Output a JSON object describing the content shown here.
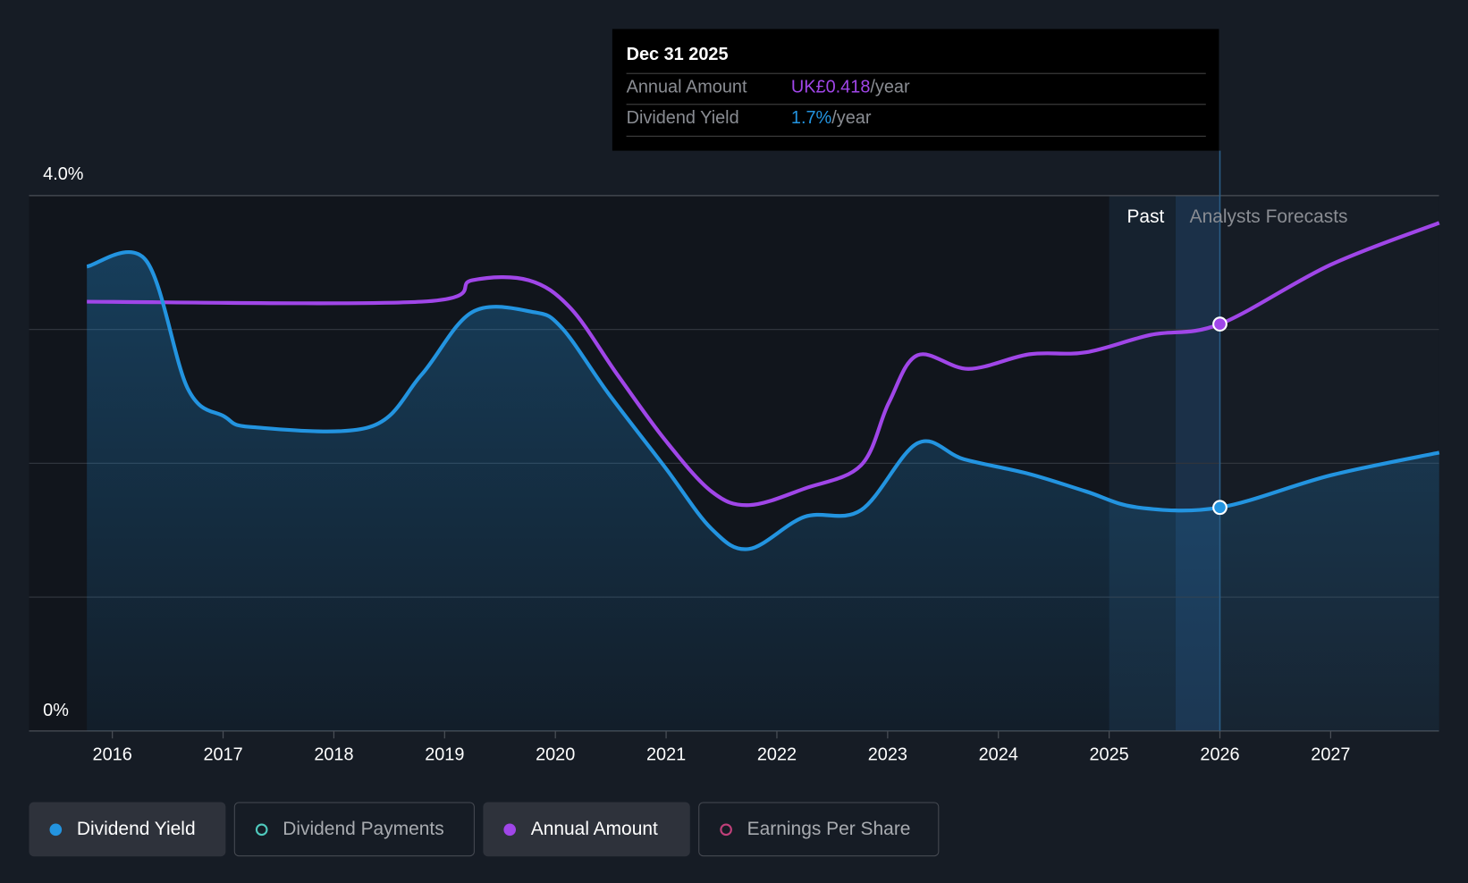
{
  "chart_data": {
    "type": "line",
    "y_axis": {
      "ticks": [
        "4.0%",
        "0%"
      ],
      "range_percent": [
        0,
        4.0
      ],
      "grid": true
    },
    "amount_axis_max_gbp": 0.55,
    "x_ticks": [
      "2016",
      "2017",
      "2018",
      "2019",
      "2020",
      "2021",
      "2022",
      "2023",
      "2024",
      "2025",
      "2026",
      "2027"
    ],
    "x_range": [
      2015.6,
      2028.0
    ],
    "regions": {
      "past_label": "Past",
      "forecast_label": "Analysts Forecasts",
      "past_shade_start": 2025.0,
      "past_shade_mid": 2025.6,
      "cursor_year": 2026.0
    },
    "series": [
      {
        "name": "Dividend Yield",
        "unit": "%",
        "color": "#2394e0",
        "points": [
          [
            2015.77,
            3.47
          ],
          [
            2016.3,
            3.52
          ],
          [
            2016.68,
            2.56
          ],
          [
            2017.01,
            2.35
          ],
          [
            2017.27,
            2.27
          ],
          [
            2018.32,
            2.27
          ],
          [
            2018.79,
            2.66
          ],
          [
            2019.25,
            3.13
          ],
          [
            2019.8,
            3.13
          ],
          [
            2020.06,
            3.01
          ],
          [
            2020.48,
            2.52
          ],
          [
            2020.99,
            1.97
          ],
          [
            2021.41,
            1.51
          ],
          [
            2021.75,
            1.36
          ],
          [
            2022.25,
            1.6
          ],
          [
            2022.76,
            1.65
          ],
          [
            2023.27,
            2.15
          ],
          [
            2023.69,
            2.03
          ],
          [
            2024.28,
            1.92
          ],
          [
            2024.79,
            1.79
          ],
          [
            2025.26,
            1.67
          ],
          [
            2026.0,
            1.67
          ],
          [
            2027.0,
            1.91
          ],
          [
            2027.98,
            2.08
          ]
        ]
      },
      {
        "name": "Annual Amount",
        "unit": "GBP",
        "color": "#a046e8",
        "points": [
          [
            2015.77,
            0.441
          ],
          [
            2018.79,
            0.441
          ],
          [
            2019.25,
            0.463
          ],
          [
            2019.76,
            0.463
          ],
          [
            2020.14,
            0.434
          ],
          [
            2020.56,
            0.366
          ],
          [
            2020.99,
            0.299
          ],
          [
            2021.41,
            0.246
          ],
          [
            2021.75,
            0.232
          ],
          [
            2022.25,
            0.249
          ],
          [
            2022.76,
            0.273
          ],
          [
            2023.01,
            0.337
          ],
          [
            2023.27,
            0.386
          ],
          [
            2023.73,
            0.372
          ],
          [
            2024.28,
            0.387
          ],
          [
            2024.79,
            0.389
          ],
          [
            2025.38,
            0.407
          ],
          [
            2026.0,
            0.418
          ],
          [
            2027.0,
            0.479
          ],
          [
            2027.98,
            0.522
          ]
        ]
      }
    ]
  },
  "tooltip": {
    "date": "Dec 31 2025",
    "rows": [
      {
        "label": "Annual Amount",
        "value": "UK£0.418",
        "suffix": "/year",
        "color": "#a046e8"
      },
      {
        "label": "Dividend Yield",
        "value": "1.7%",
        "suffix": "/year",
        "color": "#2394e0"
      }
    ]
  },
  "legend": [
    {
      "label": "Dividend Yield",
      "active": true,
      "color": "#2394e0"
    },
    {
      "label": "Dividend Payments",
      "active": false,
      "color": "#4fc9bd"
    },
    {
      "label": "Annual Amount",
      "active": true,
      "color": "#a046e8"
    },
    {
      "label": "Earnings Per Share",
      "active": false,
      "color": "#c0407a"
    }
  ]
}
